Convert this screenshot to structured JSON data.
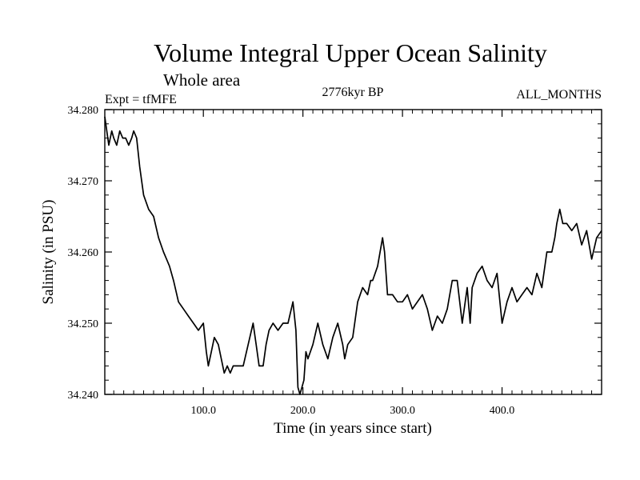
{
  "chart_data": {
    "type": "line",
    "title": "Volume Integral Upper Ocean Salinity",
    "subtitle": "Whole area",
    "left_label": "Expt = tfMFE",
    "center_label": "2776kyr BP",
    "right_label": "ALL_MONTHS",
    "xlabel": "Time (in years since start)",
    "ylabel": "Salinity (in PSU)",
    "xlim": [
      1,
      500
    ],
    "ylim": [
      34.24,
      34.28
    ],
    "xticks": [
      100,
      200,
      300,
      400
    ],
    "xtick_labels": [
      "100.0",
      "200.0",
      "300.0",
      "400.0"
    ],
    "yticks": [
      34.24,
      34.25,
      34.26,
      34.27,
      34.28
    ],
    "ytick_labels": [
      "34.240",
      "34.250",
      "34.260",
      "34.270",
      "34.280"
    ],
    "series": [
      {
        "name": "Salinity",
        "color": "#000000",
        "x": [
          1,
          3,
          5,
          8,
          10,
          13,
          16,
          19,
          22,
          25,
          28,
          30,
          33,
          36,
          40,
          45,
          50,
          55,
          60,
          63,
          66,
          70,
          75,
          80,
          85,
          90,
          95,
          100,
          103,
          105,
          108,
          111,
          115,
          118,
          121,
          124,
          127,
          130,
          133,
          136,
          140,
          145,
          150,
          153,
          156,
          160,
          163,
          166,
          170,
          175,
          180,
          185,
          190,
          193,
          195,
          197,
          199,
          201,
          203,
          205,
          210,
          215,
          220,
          225,
          230,
          235,
          240,
          242,
          245,
          250,
          255,
          260,
          265,
          268,
          270,
          275,
          280,
          282,
          285,
          290,
          295,
          300,
          305,
          310,
          315,
          320,
          325,
          330,
          335,
          340,
          345,
          350,
          355,
          360,
          365,
          368,
          370,
          375,
          380,
          385,
          390,
          395,
          400,
          405,
          410,
          415,
          420,
          425,
          430,
          435,
          440,
          445,
          450,
          453,
          455,
          458,
          461,
          465,
          470,
          475,
          480,
          485,
          490,
          495,
          500
        ],
        "y": [
          34.279,
          34.277,
          34.275,
          34.277,
          34.276,
          34.275,
          34.277,
          34.276,
          34.276,
          34.275,
          34.276,
          34.277,
          34.276,
          34.272,
          34.268,
          34.266,
          34.265,
          34.262,
          34.26,
          34.259,
          34.258,
          34.256,
          34.253,
          34.252,
          34.251,
          34.25,
          34.249,
          34.25,
          34.246,
          34.244,
          34.246,
          34.248,
          34.247,
          34.245,
          34.243,
          34.244,
          34.243,
          34.244,
          34.244,
          34.244,
          34.244,
          34.247,
          34.25,
          34.247,
          34.244,
          34.244,
          34.247,
          34.249,
          34.25,
          34.249,
          34.25,
          34.25,
          34.253,
          34.249,
          34.241,
          34.24,
          34.241,
          34.242,
          34.246,
          34.245,
          34.247,
          34.25,
          34.247,
          34.245,
          34.248,
          34.25,
          34.247,
          34.245,
          34.247,
          34.248,
          34.253,
          34.255,
          34.254,
          34.256,
          34.256,
          34.258,
          34.262,
          34.26,
          34.254,
          34.254,
          34.253,
          34.253,
          34.254,
          34.252,
          34.253,
          34.254,
          34.252,
          34.249,
          34.251,
          34.25,
          34.252,
          34.256,
          34.256,
          34.25,
          34.255,
          34.25,
          34.255,
          34.257,
          34.258,
          34.256,
          34.255,
          34.257,
          34.25,
          34.253,
          34.255,
          34.253,
          34.254,
          34.255,
          34.254,
          34.257,
          34.255,
          34.26,
          34.26,
          34.262,
          34.264,
          34.266,
          34.264,
          34.264,
          34.263,
          34.264,
          34.261,
          34.263,
          34.259,
          34.262,
          34.263
        ]
      }
    ]
  }
}
